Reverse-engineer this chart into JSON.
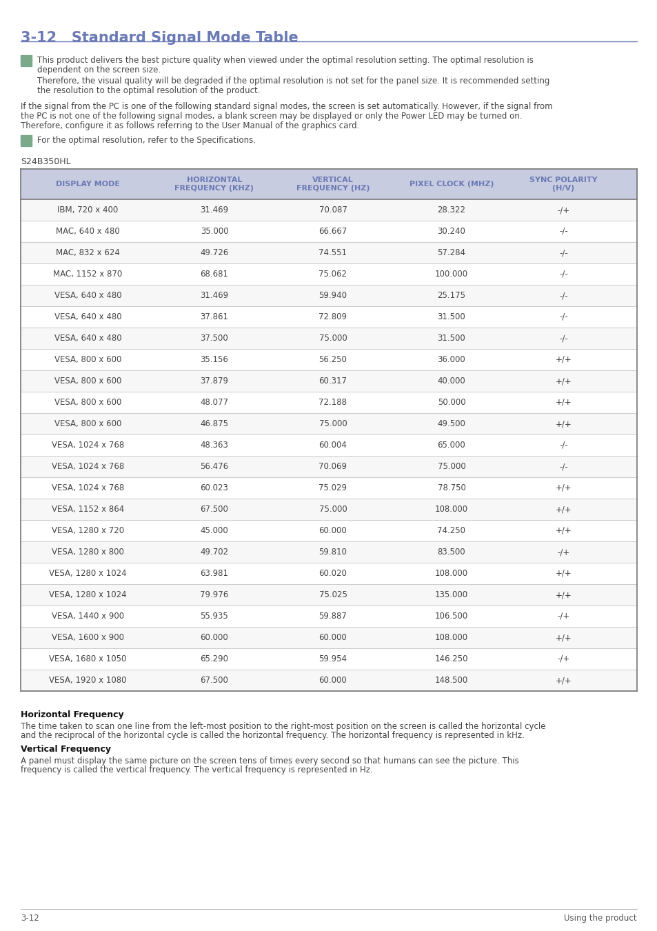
{
  "title": "3-12   Standard Signal Mode Table",
  "title_color": "#6b7ab5",
  "note1_line1": "This product delivers the best picture quality when viewed under the optimal resolution setting. The optimal resolution is",
  "note1_line2": "dependent on the screen size.",
  "note1_line3": "Therefore, the visual quality will be degraded if the optimal resolution is not set for the panel size. It is recommended setting",
  "note1_line4": "the resolution to the optimal resolution of the product.",
  "para1_line1": "If the signal from the PC is one of the following standard signal modes, the screen is set automatically. However, if the signal from",
  "para1_line2": "the PC is not one of the following signal modes, a blank screen may be displayed or only the Power LED may be turned on.",
  "para1_line3": "Therefore, configure it as follows referring to the User Manual of the graphics card.",
  "note2": "For the optimal resolution, refer to the Specifications.",
  "model": "S24B350HL",
  "table_header": [
    "DISPLAY MODE",
    "HORIZONTAL\nFREQUENCY (KHZ)",
    "VERTICAL\nFREQUENCY (HZ)",
    "PIXEL CLOCK (MHZ)",
    "SYNC POLARITY\n(H/V)"
  ],
  "header_bg": "#c8cce0",
  "header_color": "#6b7ab5",
  "table_data": [
    [
      "IBM, 720 x 400",
      "31.469",
      "70.087",
      "28.322",
      "-/+"
    ],
    [
      "MAC, 640 x 480",
      "35.000",
      "66.667",
      "30.240",
      "-/-"
    ],
    [
      "MAC, 832 x 624",
      "49.726",
      "74.551",
      "57.284",
      "-/-"
    ],
    [
      "MAC, 1152 x 870",
      "68.681",
      "75.062",
      "100.000",
      "-/-"
    ],
    [
      "VESA, 640 x 480",
      "31.469",
      "59.940",
      "25.175",
      "-/-"
    ],
    [
      "VESA, 640 x 480",
      "37.861",
      "72.809",
      "31.500",
      "-/-"
    ],
    [
      "VESA, 640 x 480",
      "37.500",
      "75.000",
      "31.500",
      "-/-"
    ],
    [
      "VESA, 800 x 600",
      "35.156",
      "56.250",
      "36.000",
      "+/+"
    ],
    [
      "VESA, 800 x 600",
      "37.879",
      "60.317",
      "40.000",
      "+/+"
    ],
    [
      "VESA, 800 x 600",
      "48.077",
      "72.188",
      "50.000",
      "+/+"
    ],
    [
      "VESA, 800 x 600",
      "46.875",
      "75.000",
      "49.500",
      "+/+"
    ],
    [
      "VESA, 1024 x 768",
      "48.363",
      "60.004",
      "65.000",
      "-/-"
    ],
    [
      "VESA, 1024 x 768",
      "56.476",
      "70.069",
      "75.000",
      "-/-"
    ],
    [
      "VESA, 1024 x 768",
      "60.023",
      "75.029",
      "78.750",
      "+/+"
    ],
    [
      "VESA, 1152 x 864",
      "67.500",
      "75.000",
      "108.000",
      "+/+"
    ],
    [
      "VESA, 1280 x 720",
      "45.000",
      "60.000",
      "74.250",
      "+/+"
    ],
    [
      "VESA, 1280 x 800",
      "49.702",
      "59.810",
      "83.500",
      "-/+"
    ],
    [
      "VESA, 1280 x 1024",
      "63.981",
      "60.020",
      "108.000",
      "+/+"
    ],
    [
      "VESA, 1280 x 1024",
      "79.976",
      "75.025",
      "135.000",
      "+/+"
    ],
    [
      "VESA, 1440 x 900",
      "55.935",
      "59.887",
      "106.500",
      "-/+"
    ],
    [
      "VESA, 1600 x 900",
      "60.000",
      "60.000",
      "108.000",
      "+/+"
    ],
    [
      "VESA, 1680 x 1050",
      "65.290",
      "59.954",
      "146.250",
      "-/+"
    ],
    [
      "VESA, 1920 x 1080",
      "67.500",
      "60.000",
      "148.500",
      "+/+"
    ]
  ],
  "footer_left": "3-12",
  "footer_right": "Using the product",
  "hfreq_title": "Horizontal Frequency",
  "hfreq_body1": "The time taken to scan one line from the left-most position to the right-most position on the screen is called the horizontal cycle",
  "hfreq_body2": "and the reciprocal of the horizontal cycle is called the horizontal frequency. The horizontal frequency is represented in kHz.",
  "vfreq_title": "Vertical Frequency",
  "vfreq_body1": "A panel must display the same picture on the screen tens of times every second so that humans can see the picture. This",
  "vfreq_body2": "frequency is called the vertical frequency. The vertical frequency is represented in Hz.",
  "icon_color": "#7aaa8a",
  "text_color": "#444444",
  "line_color": "#bbbbbb",
  "border_color": "#999999"
}
